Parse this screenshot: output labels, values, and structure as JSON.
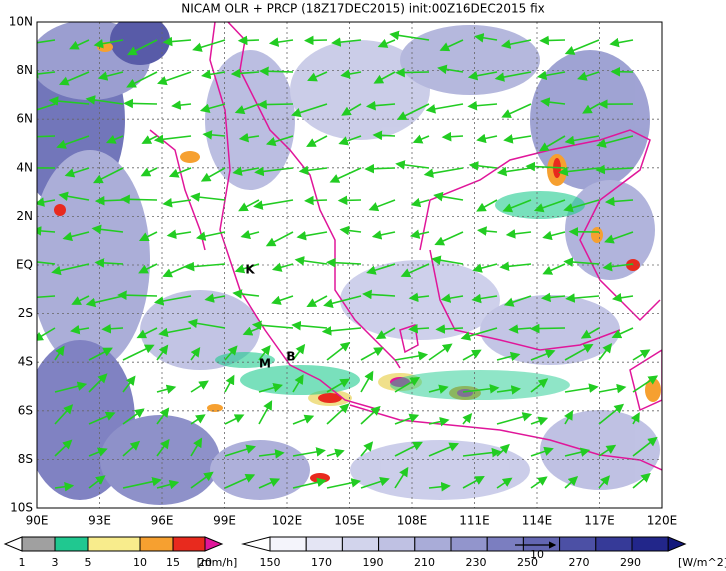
{
  "title": "NICAM OLR + PRCP (18Z17DEC2015) init:00Z16DEC2015 fix",
  "map": {
    "lat_labels": [
      "10N",
      "8N",
      "6N",
      "4N",
      "2N",
      "EQ",
      "2S",
      "4S",
      "6S",
      "8S",
      "10S"
    ],
    "lon_labels": [
      "90E",
      "93E",
      "96E",
      "99E",
      "102E",
      "105E",
      "108E",
      "111E",
      "114E",
      "117E",
      "120E"
    ],
    "places": [
      "K",
      "M",
      "B"
    ]
  },
  "precip_legend": {
    "labels": [
      "1",
      "3",
      "5",
      "10",
      "15",
      "20"
    ],
    "unit": "[mm/h]"
  },
  "olr_legend": {
    "labels": [
      "150",
      "170",
      "190",
      "210",
      "230",
      "250",
      "270",
      "290"
    ],
    "unit": "[W/m^2]",
    "vector_label": "10"
  }
}
